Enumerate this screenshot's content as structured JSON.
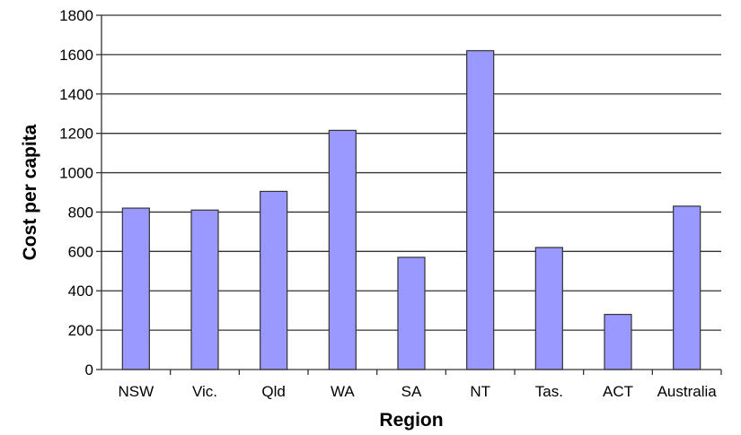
{
  "chart_data": {
    "type": "bar",
    "title": "",
    "xlabel": "Region",
    "ylabel": "Cost per capita",
    "categories": [
      "NSW",
      "Vic.",
      "Qld",
      "WA",
      "SA",
      "NT",
      "Tas.",
      "ACT",
      "Australia"
    ],
    "values": [
      820,
      810,
      905,
      1215,
      570,
      1620,
      620,
      280,
      830
    ],
    "ylim": [
      0,
      1800
    ],
    "yticks": [
      0,
      200,
      400,
      600,
      800,
      1000,
      1200,
      1400,
      1600,
      1800
    ],
    "ytick_labels": [
      "0",
      "200",
      "400",
      "600",
      "800",
      "1000",
      "1200",
      "1400",
      "1600",
      "1800"
    ],
    "grid": true,
    "legend": "none",
    "bar_color": "#9999ff"
  }
}
